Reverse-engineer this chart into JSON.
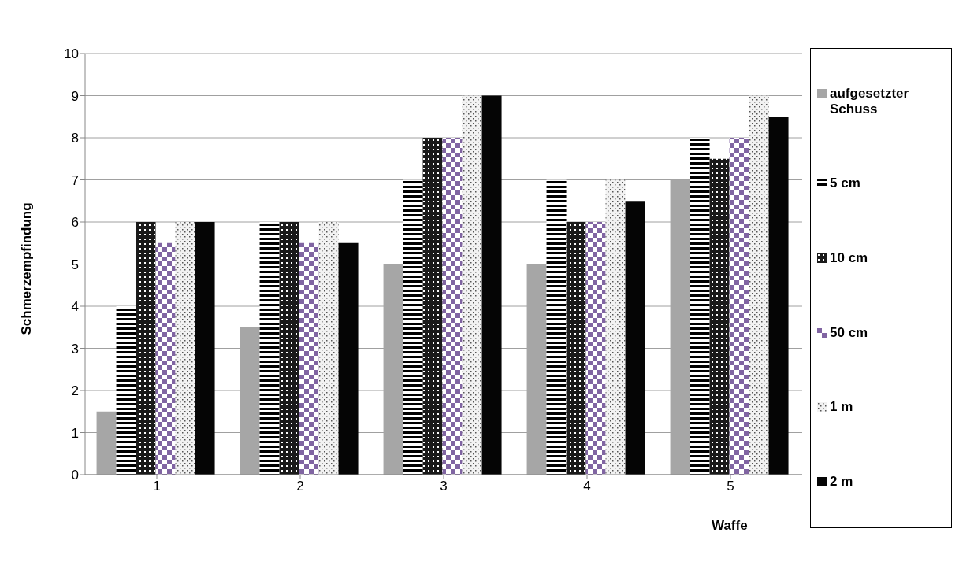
{
  "chart_data": {
    "type": "bar",
    "xlabel": "Waffe",
    "ylabel": "Schmerzempfindung",
    "categories": [
      "1",
      "2",
      "3",
      "4",
      "5"
    ],
    "series": [
      {
        "name": "aufgesetzter Schuss",
        "color": "#a6a6a6",
        "values": [
          1.5,
          3.5,
          5,
          5,
          7
        ]
      },
      {
        "name": "5 cm",
        "color": "#000000",
        "values": [
          4,
          6,
          7,
          7,
          8
        ]
      },
      {
        "name": "10 cm",
        "color": "#1a1a1a",
        "values": [
          6,
          6,
          8,
          6,
          7.5
        ]
      },
      {
        "name": "50 cm",
        "color": "#8064a2",
        "values": [
          5.5,
          5.5,
          8,
          6,
          8
        ]
      },
      {
        "name": "1 m",
        "color": "#f2f2f2",
        "values": [
          6,
          6,
          9,
          7,
          9
        ]
      },
      {
        "name": "2 m",
        "color": "#050505",
        "values": [
          6,
          5.5,
          9,
          6.5,
          8.5
        ]
      }
    ],
    "ylim": [
      0,
      10
    ],
    "yticks": [
      0,
      1,
      2,
      3,
      4,
      5,
      6,
      7,
      8,
      9,
      10
    ],
    "grid": "y",
    "legend": "right"
  }
}
